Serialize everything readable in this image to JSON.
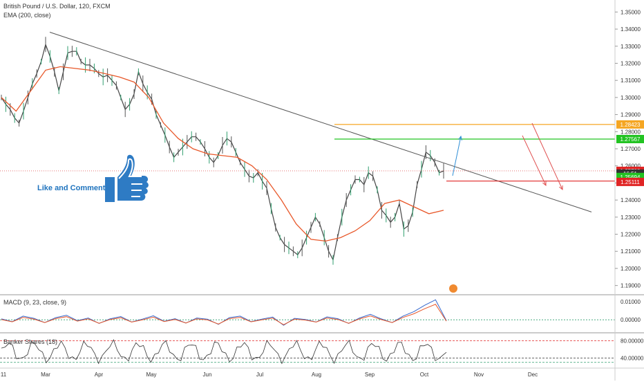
{
  "header": {
    "symbol_line": "British Pound / U.S. Dollar, 120, FXCM",
    "indicator_line": "EMA (200, close)"
  },
  "promo_text": "Like and Comment",
  "macd_label": "MACD (9, 23, close, 9)",
  "banker_label": "Banker Shares (18)",
  "colors": {
    "price_candle": "#444444",
    "ema": "#e8582a",
    "trendline": "#555555",
    "orange_level": "#f5a623",
    "green_level": "#22c322",
    "red_level": "#e02424",
    "blue_arrow": "#2f8fd6",
    "red_arrow": "#e05050",
    "thumb": "#2e7bc4"
  },
  "chart_data": [
    {
      "type": "line",
      "title": "British Pound / U.S. Dollar, 120, FXCM",
      "x_ticks": [
        "11",
        "Mar",
        "Apr",
        "May",
        "Jun",
        "Jul",
        "Aug",
        "Sep",
        "Oct",
        "Nov",
        "Dec"
      ],
      "y_ticks": [
        "1.19000",
        "1.20000",
        "1.21000",
        "1.22000",
        "1.23000",
        "1.24000",
        "1.25000",
        "1.26000",
        "1.27000",
        "1.28000",
        "1.29000",
        "1.30000",
        "1.31000",
        "1.32000",
        "1.33000",
        "1.34000",
        "1.35000"
      ],
      "ylim": [
        1.185,
        1.355
      ],
      "series": [
        {
          "name": "Price",
          "x": [
            0,
            3,
            6,
            9,
            12,
            15,
            18,
            21,
            24,
            27,
            30,
            33,
            36,
            39,
            42,
            45,
            48,
            51,
            54,
            57,
            60,
            63,
            66,
            69,
            72,
            75,
            78,
            81,
            84,
            87,
            90,
            93,
            96,
            99,
            102,
            105,
            108,
            111,
            114,
            117,
            120,
            123,
            126,
            129,
            132,
            135,
            138,
            141,
            144,
            147,
            150,
            153,
            156,
            159,
            162,
            165,
            168,
            171,
            174,
            177,
            180,
            183,
            186,
            189,
            192,
            195,
            198,
            201,
            204,
            207,
            210,
            213,
            216,
            219,
            222,
            225,
            228,
            231,
            234,
            237,
            240,
            243,
            246,
            249,
            252,
            255,
            258,
            261,
            264,
            267,
            270,
            273,
            276,
            279,
            282,
            285,
            288,
            291,
            294,
            297,
            300
          ],
          "values": [
            1.3,
            1.296,
            1.293,
            1.288,
            1.285,
            1.292,
            1.3,
            1.308,
            1.314,
            1.321,
            1.331,
            1.324,
            1.315,
            1.304,
            1.315,
            1.326,
            1.327,
            1.327,
            1.321,
            1.319,
            1.319,
            1.317,
            1.314,
            1.312,
            1.313,
            1.31,
            1.307,
            1.3,
            1.293,
            1.296,
            1.302,
            1.315,
            1.308,
            1.303,
            1.299,
            1.29,
            1.284,
            1.278,
            1.271,
            1.265,
            1.268,
            1.271,
            1.274,
            1.277,
            1.277,
            1.274,
            1.27,
            1.265,
            1.262,
            1.266,
            1.272,
            1.276,
            1.274,
            1.268,
            1.262,
            1.258,
            1.254,
            1.253,
            1.256,
            1.251,
            1.247,
            1.235,
            1.224,
            1.218,
            1.214,
            1.212,
            1.21,
            1.208,
            1.212,
            1.218,
            1.224,
            1.23,
            1.226,
            1.218,
            1.21,
            1.205,
            1.218,
            1.23,
            1.24,
            1.246,
            1.252,
            1.252,
            1.249,
            1.256,
            1.254,
            1.246,
            1.234,
            1.231,
            1.227,
            1.23,
            1.238,
            1.223,
            1.225,
            1.233,
            1.249,
            1.258,
            1.268,
            1.266,
            1.262,
            1.256,
            1.257
          ]
        },
        {
          "name": "EMA (200, close)",
          "x": [
            0,
            10,
            20,
            30,
            40,
            50,
            60,
            70,
            80,
            90,
            100,
            110,
            120,
            130,
            140,
            150,
            160,
            170,
            180,
            190,
            200,
            210,
            220,
            230,
            240,
            250,
            260,
            270,
            280,
            290,
            300
          ],
          "values": [
            1.3,
            1.292,
            1.304,
            1.316,
            1.318,
            1.317,
            1.316,
            1.314,
            1.312,
            1.309,
            1.3,
            1.285,
            1.276,
            1.27,
            1.267,
            1.266,
            1.265,
            1.26,
            1.252,
            1.24,
            1.226,
            1.217,
            1.216,
            1.218,
            1.222,
            1.228,
            1.238,
            1.24,
            1.236,
            1.232,
            1.234
          ]
        }
      ],
      "price_labels": [
        "1.28423",
        "1.27567",
        "1.25708",
        "16:51",
        "1.25694",
        "1.25111"
      ],
      "levels": [
        1.28423,
        1.27567,
        1.25708,
        1.25111
      ],
      "trendline": {
        "from": [
          1.3382
        ],
        "to": [
          1.233
        ]
      }
    },
    {
      "type": "line",
      "title": "MACD (9, 23, close, 9)",
      "y_ticks": [
        "0.01000",
        "0.00000"
      ],
      "ylim": [
        -0.006,
        0.013
      ],
      "series": [
        {
          "name": "MACD",
          "values": [
            0.0005,
            -0.001,
            0.002,
            0.0008,
            -0.0015,
            0.0012,
            0.0025,
            -0.0005,
            0.001,
            -0.002,
            0.0005,
            0.0018,
            -0.0012,
            0.0004,
            0.0022,
            -0.0008,
            0.0006,
            -0.0018,
            0.001,
            0.0003,
            -0.0025,
            0.0012,
            0.002,
            -0.001,
            0.0004,
            0.0015,
            -0.003,
            0.0008,
            0.0002,
            -0.0012,
            0.0016,
            0.0006,
            -0.002,
            0.001,
            0.003,
            0.0005,
            -0.0015,
            0.002,
            0.0045,
            0.008,
            0.011,
            -0.0005
          ]
        }
      ]
    },
    {
      "type": "line",
      "title": "Banker Shares (18)",
      "y_ticks": [
        "80.00000",
        "40.00000"
      ],
      "ylim": [
        20,
        95
      ]
    }
  ]
}
